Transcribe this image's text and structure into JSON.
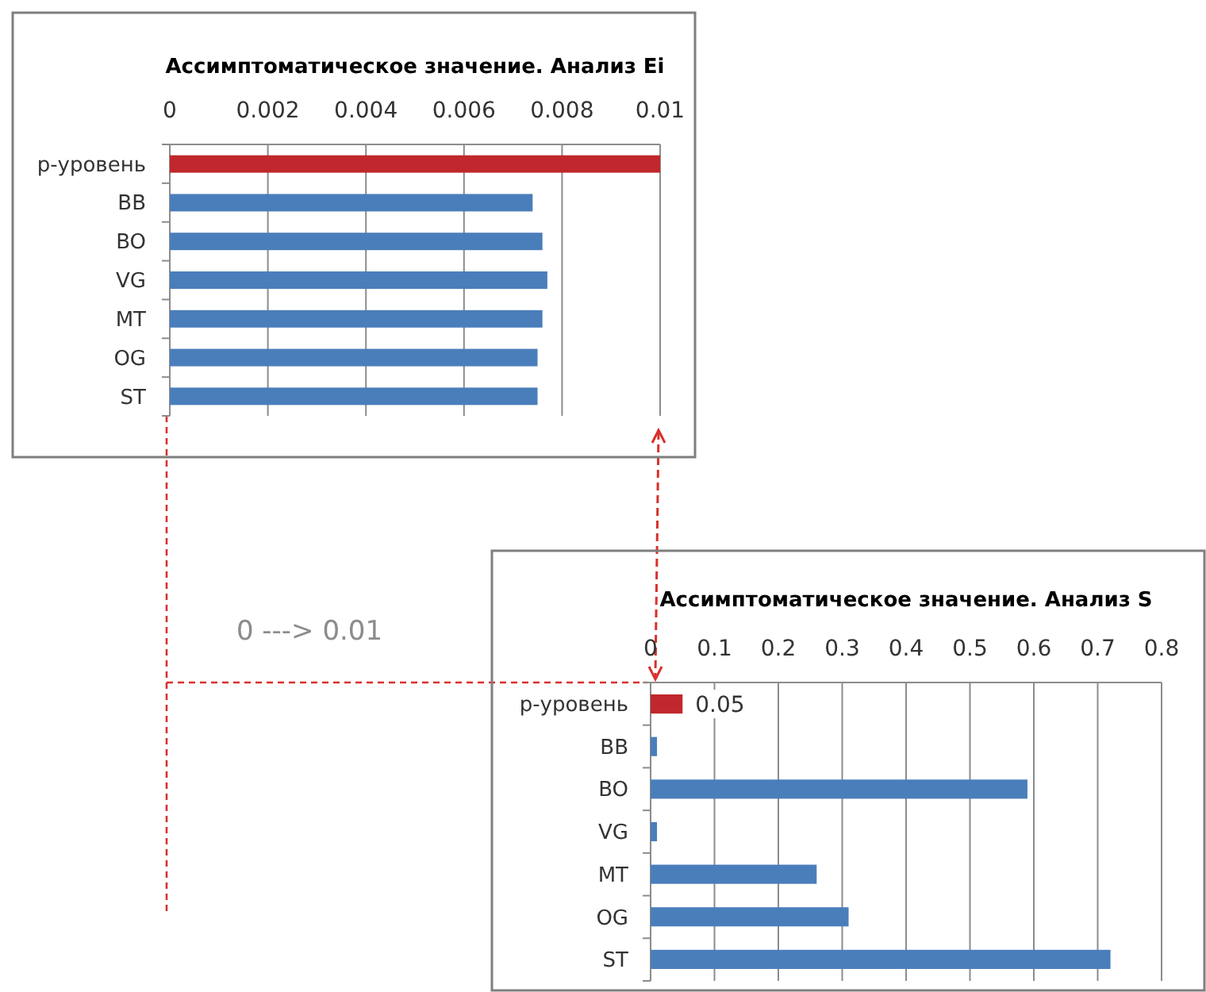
{
  "chart_data": [
    {
      "type": "bar",
      "orientation": "horizontal",
      "title": "Ассимптоматическое значение. Анализ Ei",
      "categories": [
        "p-уровень",
        "BB",
        "BO",
        "VG",
        "MT",
        "OG",
        "ST"
      ],
      "values": [
        0.01,
        0.0074,
        0.0076,
        0.0077,
        0.0076,
        0.0075,
        0.0075
      ],
      "colors": [
        "#c0282d",
        "#4a7ebb",
        "#4a7ebb",
        "#4a7ebb",
        "#4a7ebb",
        "#4a7ebb",
        "#4a7ebb"
      ],
      "xlim": [
        0,
        0.01
      ],
      "xticks": [
        0,
        0.002,
        0.004,
        0.006,
        0.008,
        0.01
      ],
      "grid": "x",
      "annotations": [
        "0 ---> 0.01"
      ]
    },
    {
      "type": "bar",
      "orientation": "horizontal",
      "title": "Ассимптоматическое  значение. Анализ S",
      "categories": [
        "p-уровень",
        "BB",
        "BO",
        "VG",
        "MT",
        "OG",
        "ST"
      ],
      "values": [
        0.05,
        0.01,
        0.59,
        0.01,
        0.26,
        0.31,
        0.72
      ],
      "value_labels": [
        "0.05",
        null,
        null,
        null,
        null,
        null,
        null
      ],
      "colors": [
        "#c0282d",
        "#4a7ebb",
        "#4a7ebb",
        "#4a7ebb",
        "#4a7ebb",
        "#4a7ebb",
        "#4a7ebb"
      ],
      "xlim": [
        0,
        0.8
      ],
      "xticks": [
        0,
        0.1,
        0.2,
        0.3,
        0.4,
        0.5,
        0.6,
        0.7,
        0.8
      ],
      "grid": "x"
    }
  ]
}
